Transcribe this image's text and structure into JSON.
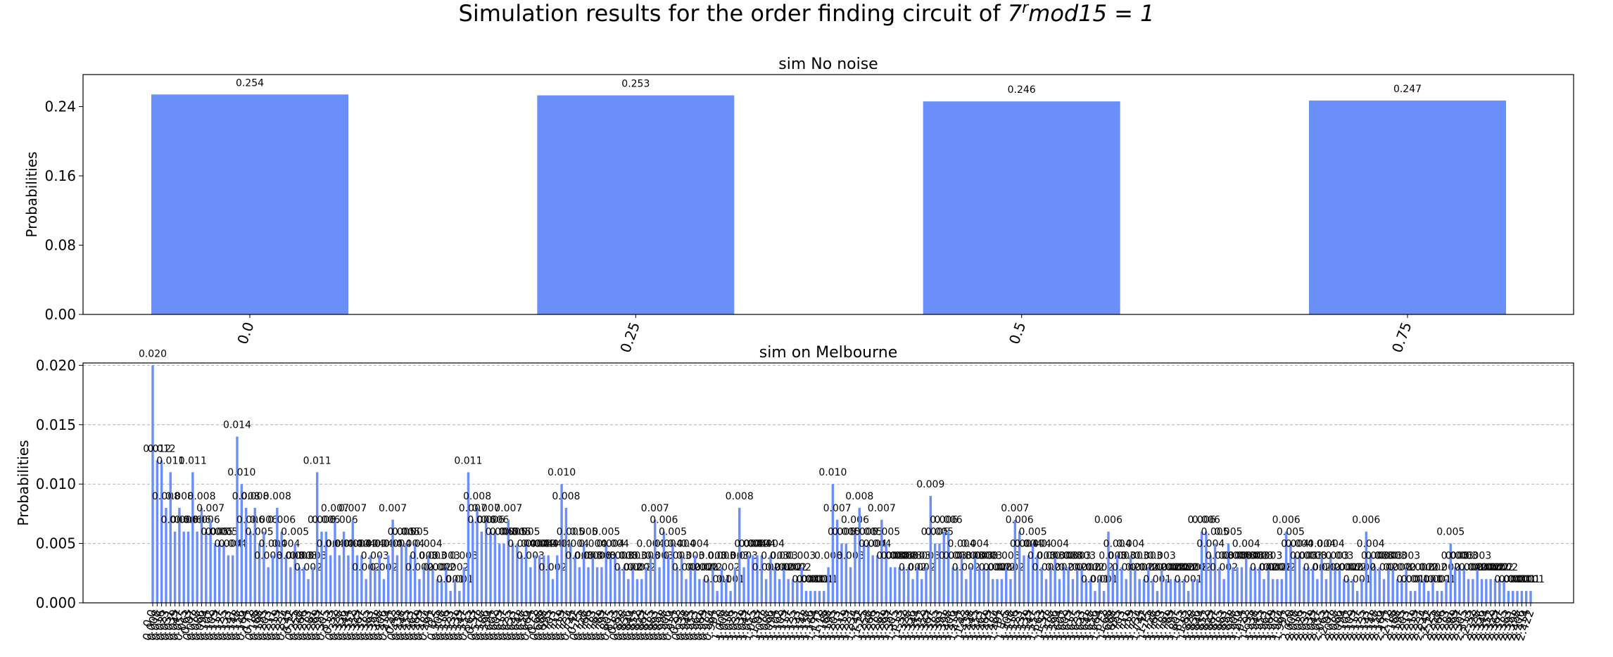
{
  "figure": {
    "title_prefix": "Simulation results for the order finding circuit of ",
    "title_math": "7",
    "title_sup": "r",
    "title_suffix": "mod15 = 1"
  },
  "colors": {
    "bar": "#6a8ff8",
    "axis": "#000000",
    "grid": "#b0b0b0"
  },
  "chart_data": [
    {
      "type": "bar",
      "title": "sim No noise",
      "ylabel": "Probabilities",
      "categories": [
        "0.0",
        "0.25",
        "0.5",
        "0.75"
      ],
      "values": [
        0.254,
        0.253,
        0.246,
        0.247
      ],
      "value_labels": [
        "0.254",
        "0.253",
        "0.246",
        "0.247"
      ],
      "yticks": [
        "0.00",
        "0.08",
        "0.16",
        "0.24"
      ],
      "ylim": [
        0,
        0.277
      ],
      "grid": false
    },
    {
      "type": "bar",
      "title": "sim on Melbourne",
      "ylabel": "Probabilities",
      "values": [
        0.02,
        0.012,
        0.012,
        0.008,
        0.011,
        0.006,
        0.008,
        0.006,
        0.006,
        0.011,
        0.006,
        0.008,
        0.006,
        0.007,
        0.005,
        0.005,
        0.005,
        0.004,
        0.004,
        0.014,
        0.01,
        0.008,
        0.006,
        0.008,
        0.005,
        0.006,
        0.003,
        0.004,
        0.008,
        0.006,
        0.004,
        0.003,
        0.005,
        0.003,
        0.003,
        0.002,
        0.003,
        0.011,
        0.006,
        0.006,
        0.004,
        0.007,
        0.004,
        0.006,
        0.004,
        0.007,
        0.004,
        0.004,
        0.002,
        0.004,
        0.003,
        0.004,
        0.002,
        0.004,
        0.007,
        0.004,
        0.005,
        0.005,
        0.004,
        0.005,
        0.002,
        0.003,
        0.004,
        0.003,
        0.002,
        0.002,
        0.003,
        0.001,
        0.002,
        0.001,
        0.003,
        0.011,
        0.007,
        0.008,
        0.006,
        0.007,
        0.006,
        0.006,
        0.005,
        0.005,
        0.007,
        0.005,
        0.005,
        0.004,
        0.005,
        0.003,
        0.004,
        0.004,
        0.004,
        0.004,
        0.002,
        0.004,
        0.01,
        0.008,
        0.005,
        0.004,
        0.003,
        0.005,
        0.003,
        0.004,
        0.003,
        0.003,
        0.005,
        0.004,
        0.004,
        0.003,
        0.003,
        0.002,
        0.003,
        0.002,
        0.002,
        0.003,
        0.004,
        0.007,
        0.003,
        0.006,
        0.004,
        0.005,
        0.003,
        0.004,
        0.002,
        0.003,
        0.004,
        0.002,
        0.002,
        0.002,
        0.003,
        0.001,
        0.003,
        0.002,
        0.001,
        0.003,
        0.008,
        0.003,
        0.004,
        0.004,
        0.004,
        0.004,
        0.002,
        0.004,
        0.003,
        0.002,
        0.003,
        0.002,
        0.002,
        0.002,
        0.003,
        0.001,
        0.001,
        0.001,
        0.001,
        0.001,
        0.003,
        0.01,
        0.007,
        0.005,
        0.005,
        0.003,
        0.006,
        0.008,
        0.005,
        0.005,
        0.004,
        0.004,
        0.007,
        0.005,
        0.003,
        0.003,
        0.003,
        0.003,
        0.003,
        0.002,
        0.003,
        0.002,
        0.003,
        0.009,
        0.005,
        0.005,
        0.006,
        0.006,
        0.003,
        0.003,
        0.004,
        0.002,
        0.003,
        0.004,
        0.003,
        0.003,
        0.003,
        0.002,
        0.002,
        0.002,
        0.003,
        0.002,
        0.007,
        0.006,
        0.004,
        0.004,
        0.005,
        0.004,
        0.003,
        0.002,
        0.003,
        0.004,
        0.002,
        0.003,
        0.003,
        0.002,
        0.003,
        0.003,
        0.002,
        0.002,
        0.001,
        0.002,
        0.001,
        0.006,
        0.003,
        0.004,
        0.003,
        0.002,
        0.004,
        0.003,
        0.002,
        0.002,
        0.003,
        0.002,
        0.001,
        0.003,
        0.002,
        0.002,
        0.002,
        0.002,
        0.002,
        0.001,
        0.002,
        0.002,
        0.006,
        0.006,
        0.004,
        0.005,
        0.003,
        0.002,
        0.005,
        0.003,
        0.003,
        0.003,
        0.004,
        0.003,
        0.003,
        0.003,
        0.002,
        0.003,
        0.002,
        0.002,
        0.002,
        0.006,
        0.005,
        0.004,
        0.004,
        0.003,
        0.003,
        0.003,
        0.002,
        0.004,
        0.002,
        0.004,
        0.003,
        0.003,
        0.002,
        0.002,
        0.002,
        0.001,
        0.002,
        0.006,
        0.004,
        0.003,
        0.003,
        0.002,
        0.003,
        0.003,
        0.002,
        0.002,
        0.003,
        0.001,
        0.001,
        0.002,
        0.002,
        0.001,
        0.002,
        0.001,
        0.001,
        0.002,
        0.005,
        0.003,
        0.003,
        0.003,
        0.002,
        0.002,
        0.003,
        0.002,
        0.002,
        0.002,
        0.002,
        0.002,
        0.002,
        0.001,
        0.001,
        0.001,
        0.001,
        0.001,
        0.001
      ],
      "yticks": [
        "0.000",
        "0.005",
        "0.010",
        "0.015",
        "0.020"
      ],
      "ylim": [
        0,
        0.0202
      ],
      "grid": true
    }
  ]
}
